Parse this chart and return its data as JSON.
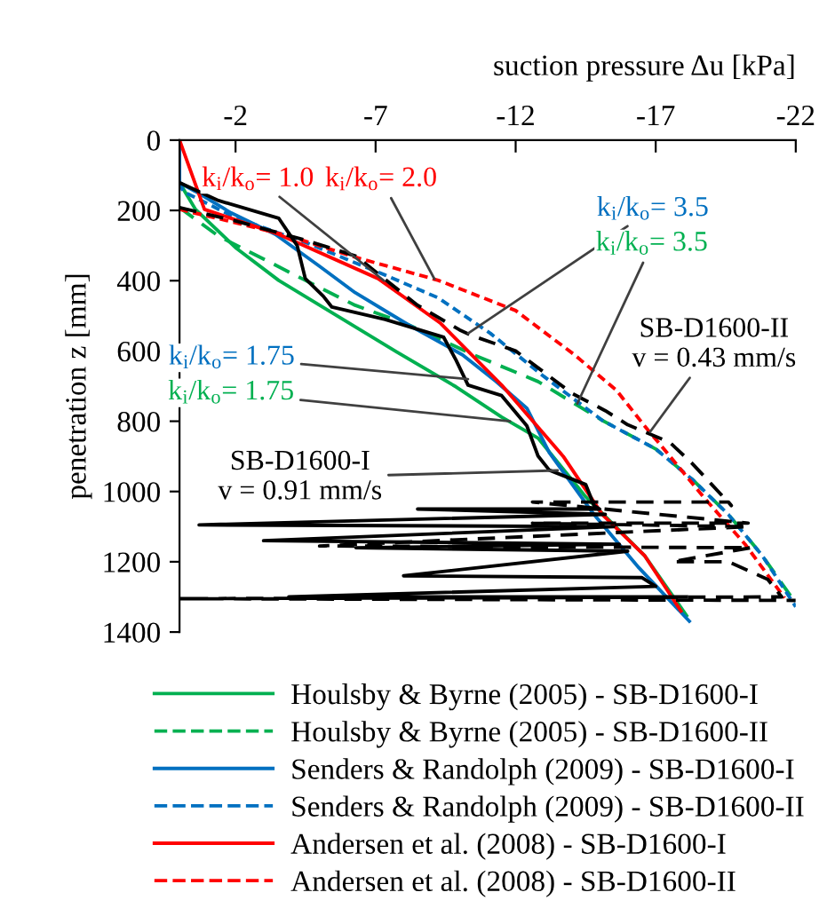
{
  "chart_data": {
    "type": "line",
    "xlabel": "suction pressure Δu [kPa]",
    "ylabel": "penetration z [mm]",
    "xlim": [
      0,
      -22
    ],
    "xticks": [
      -2,
      -7,
      -12,
      -17,
      -22
    ],
    "ylim": [
      1400,
      0
    ],
    "yticks": [
      0,
      200,
      400,
      600,
      800,
      1000,
      1200,
      1400
    ],
    "grid": false,
    "legend": "bottom",
    "series": [
      {
        "name": "Houlsby & Byrne (2005) - SB-D1600-I",
        "color": "#00b050",
        "line_style": "solid",
        "x": [
          0,
          -0.57,
          -2.03,
          -3.54,
          -5.63,
          -7.72,
          -9.87,
          -11.5,
          -12.8,
          -14.5,
          -16.6,
          -18.1
        ],
        "values": [
          121,
          197,
          308,
          399,
          500,
          601,
          702,
          788,
          848,
          1015,
          1182,
          1353
        ]
      },
      {
        "name": "Houlsby & Byrne (2005) - SB-D1600-II",
        "color": "#00b050",
        "line_style": "dashed",
        "x": [
          0,
          -1.39,
          -4.37,
          -6.27,
          -8.16,
          -10.5,
          -12.8,
          -15.1,
          -17.0,
          -18.3,
          -19.6,
          -20.8,
          -22.0
        ],
        "values": [
          192,
          273,
          394,
          470,
          525,
          611,
          687,
          798,
          879,
          965,
          1066,
          1182,
          1318
        ]
      },
      {
        "name": "Senders & Randolph (2009) - SB-D1600-I",
        "color": "#0070c0",
        "line_style": "solid",
        "x": [
          0,
          0,
          -0.57,
          -1.84,
          -3.42,
          -5,
          -6.27,
          -8.16,
          -10.1,
          -11.3,
          -12.4,
          -13.2,
          -14.8,
          -16.4,
          -18.2
        ],
        "values": [
          0,
          121,
          146,
          207,
          268,
          359,
          434,
          525,
          611,
          687,
          763,
          889,
          1066,
          1217,
          1369
        ]
      },
      {
        "name": "Senders & Randolph (2009) - SB-D1600-II",
        "color": "#0070c0",
        "line_style": "dotted",
        "x": [
          0,
          -0.13,
          -2.03,
          -4.56,
          -7.34,
          -9.24,
          -11.1,
          -13.0,
          -15.1,
          -17.0,
          -18.3,
          -19.6,
          -20.8,
          -22.0
        ],
        "values": [
          121,
          146,
          222,
          293,
          384,
          449,
          550,
          672,
          798,
          879,
          965,
          1066,
          1182,
          1328
        ]
      },
      {
        "name": "Andersen et al. (2008) - SB-D1600-I",
        "color": "#ff0000",
        "line_style": "solid",
        "x": [
          0,
          -0.89,
          -3.54,
          -7.09,
          -9.3,
          -11.5,
          -13.7,
          -15.1,
          -16.6,
          -17.9
        ],
        "values": [
          0,
          197,
          268,
          394,
          520,
          697,
          900,
          1066,
          1182,
          1340
        ]
      },
      {
        "name": "Andersen et al. (2008) - SB-D1600-II",
        "color": "#ff0000",
        "line_style": "dotted",
        "x": [
          0,
          -1.84,
          -3.92,
          -6.27,
          -9.24,
          -12.0,
          -14.1,
          -15.6,
          -16.6,
          -17.5,
          -18.7,
          -20.2,
          -21.6
        ],
        "values": [
          197,
          232,
          273,
          333,
          399,
          485,
          611,
          712,
          813,
          899,
          1015,
          1151,
          1303
        ]
      },
      {
        "color": "#000000",
        "line_style": "solid",
        "x": [
          0,
          -1.39,
          -3.54,
          -4.2,
          -4.49,
          -5.13,
          -5.44,
          -7.34,
          -9.43,
          -9.87,
          -10.3,
          -11.5,
          -12.4,
          -12.8,
          -13.2,
          -14.5,
          -14.8,
          -15.0,
          -8.5,
          -15.2,
          -0.7,
          -15.5,
          -3.0,
          -15.7,
          -6.3,
          -16.0,
          -8.0,
          -16.5,
          -17.0,
          -3.9,
          -18.1
        ],
        "values": [
          121,
          172,
          222,
          300,
          394,
          444,
          475,
          510,
          561,
          626,
          697,
          727,
          813,
          899,
          939,
          980,
          1040,
          1050,
          1050,
          1065,
          1095,
          1100,
          1140,
          1150,
          1160,
          1170,
          1240,
          1245,
          1270,
          1300,
          1300
        ]
      },
      {
        "color": "#000000",
        "line_style": "dashed",
        "x": [
          0,
          -2.0,
          -4.5,
          -6.3,
          -8.5,
          -10.0,
          -10.4,
          -12.0,
          -13.0,
          -14.0,
          -15.2,
          -16.0,
          -17.5,
          -18.3,
          -19.0,
          -19.7,
          -19.6,
          -12.6,
          -20.3,
          -12.6,
          -20.3,
          -5.0,
          -20.4,
          -17.6,
          -19.6,
          -21.0,
          -21.5,
          0,
          -22.0
        ],
        "values": [
          192,
          230,
          285,
          330,
          470,
          540,
          555,
          600,
          660,
          720,
          770,
          810,
          860,
          920,
          980,
          1040,
          1030,
          1030,
          1090,
          1090,
          1100,
          1155,
          1160,
          1200,
          1200,
          1250,
          1300,
          1305,
          1310
        ]
      }
    ],
    "annotations": [
      {
        "text": "k$_{i}$/k$_{o}$= 1.0",
        "x": -7.3,
        "y": 400
      },
      {
        "text": "k$_{i}$/k$_{o}$= 2.0",
        "x": -9.1,
        "y": 395
      },
      {
        "text": "k$_{i}$/k$_{o}$= 3.5",
        "x": -10.3,
        "y": 550
      },
      {
        "text": "k$_{i}$/k$_{o}$= 3.5",
        "x": -14.2,
        "y": 750
      },
      {
        "text": "k$_{i}$/k$_{o}$= 1.75",
        "x": -10.3,
        "y": 680
      },
      {
        "text": "k$_{i}$/k$_{o}$= 1.75",
        "x": -11.8,
        "y": 800
      },
      {
        "text": "SB-D1600-I\nv = 0.91 mm/s",
        "x": -13.5,
        "y": 940
      },
      {
        "text": "SB-D1600-II\nv = 0.43 mm/s",
        "x": -16.8,
        "y": 830
      }
    ]
  }
}
